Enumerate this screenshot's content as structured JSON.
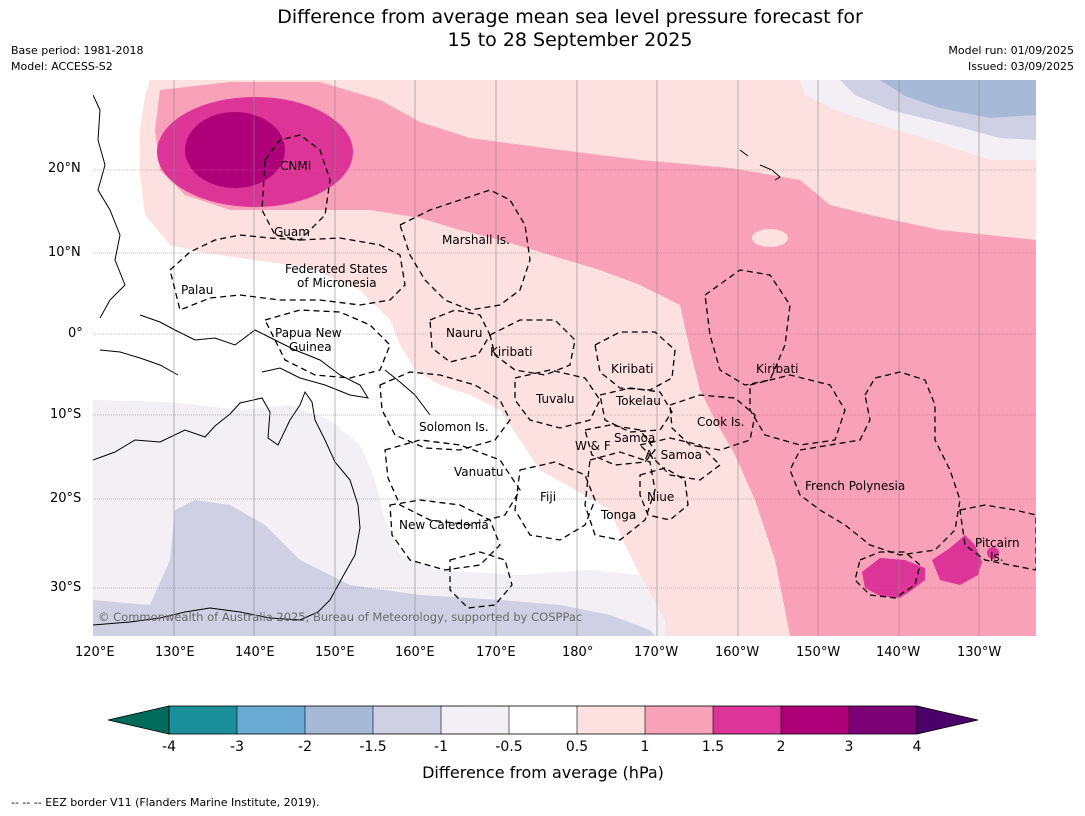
{
  "title_line1": "Difference from average mean sea level pressure forecast for",
  "title_line2": "15 to 28 September 2025",
  "meta": {
    "base_period": "Base period: 1981-2018",
    "model": "Model: ACCESS-S2",
    "model_run": "Model run: 01/09/2025",
    "issued": "Issued: 03/09/2025"
  },
  "lat_labels": [
    "20°N",
    "10°N",
    "0°",
    "10°S",
    "20°S",
    "30°S"
  ],
  "lon_labels": [
    "120°E",
    "130°E",
    "140°E",
    "150°E",
    "160°E",
    "170°E",
    "180°",
    "170°W",
    "160°W",
    "150°W",
    "140°W",
    "130°W"
  ],
  "regions": {
    "cnmi": "CNMI",
    "guam": "Guam",
    "marshall": "Marshall Is.",
    "fsm_1": "Federated States",
    "fsm_2": "of Micronesia",
    "palau": "Palau",
    "png_1": "Papua New",
    "png_2": "Guinea",
    "nauru": "Nauru",
    "kiribati_w": "Kiribati",
    "kiribati_c": "Kiribati",
    "kiribati_e": "Kiribati",
    "tuvalu": "Tuvalu",
    "tokelau": "Tokelau",
    "cook": "Cook Is.",
    "solomon": "Solomon Is.",
    "samoa": "Samoa",
    "wf": "W & F",
    "asamoa": "A. Samoa",
    "vanuatu": "Vanuatu",
    "fiji": "Fiji",
    "niue": "Niue",
    "tonga": "Tonga",
    "french_polynesia": "French Polynesia",
    "new_caledonia": "New Caledonia",
    "pitcairn_1": "Pitcairn",
    "pitcairn_2": "Is."
  },
  "copyright": "© Commonwealth of Australia 2025, Bureau of Meteorology, supported by COSPPac",
  "colorbar": {
    "title": "Difference from average (hPa)",
    "ticks": [
      "-4",
      "-3",
      "-2",
      "-1.5",
      "-1",
      "-0.5",
      "0.5",
      "1",
      "1.5",
      "2",
      "3",
      "4"
    ],
    "colors": {
      "under": "#006b5a",
      "b1": "#1a8f9a",
      "b2": "#6aaad4",
      "b3": "#a6bad8",
      "b4": "#cfd0e4",
      "b5": "#f2eff5",
      "b6": "#ffffff",
      "b7": "#fde0e0",
      "b8": "#f9a1b9",
      "b9": "#dc3597",
      "b10": "#ae0078",
      "b11": "#7c0076",
      "over": "#4b006b"
    }
  },
  "footer": "--  --  -- EEZ border V11 (Flanders Marine Institute, 2019)."
}
